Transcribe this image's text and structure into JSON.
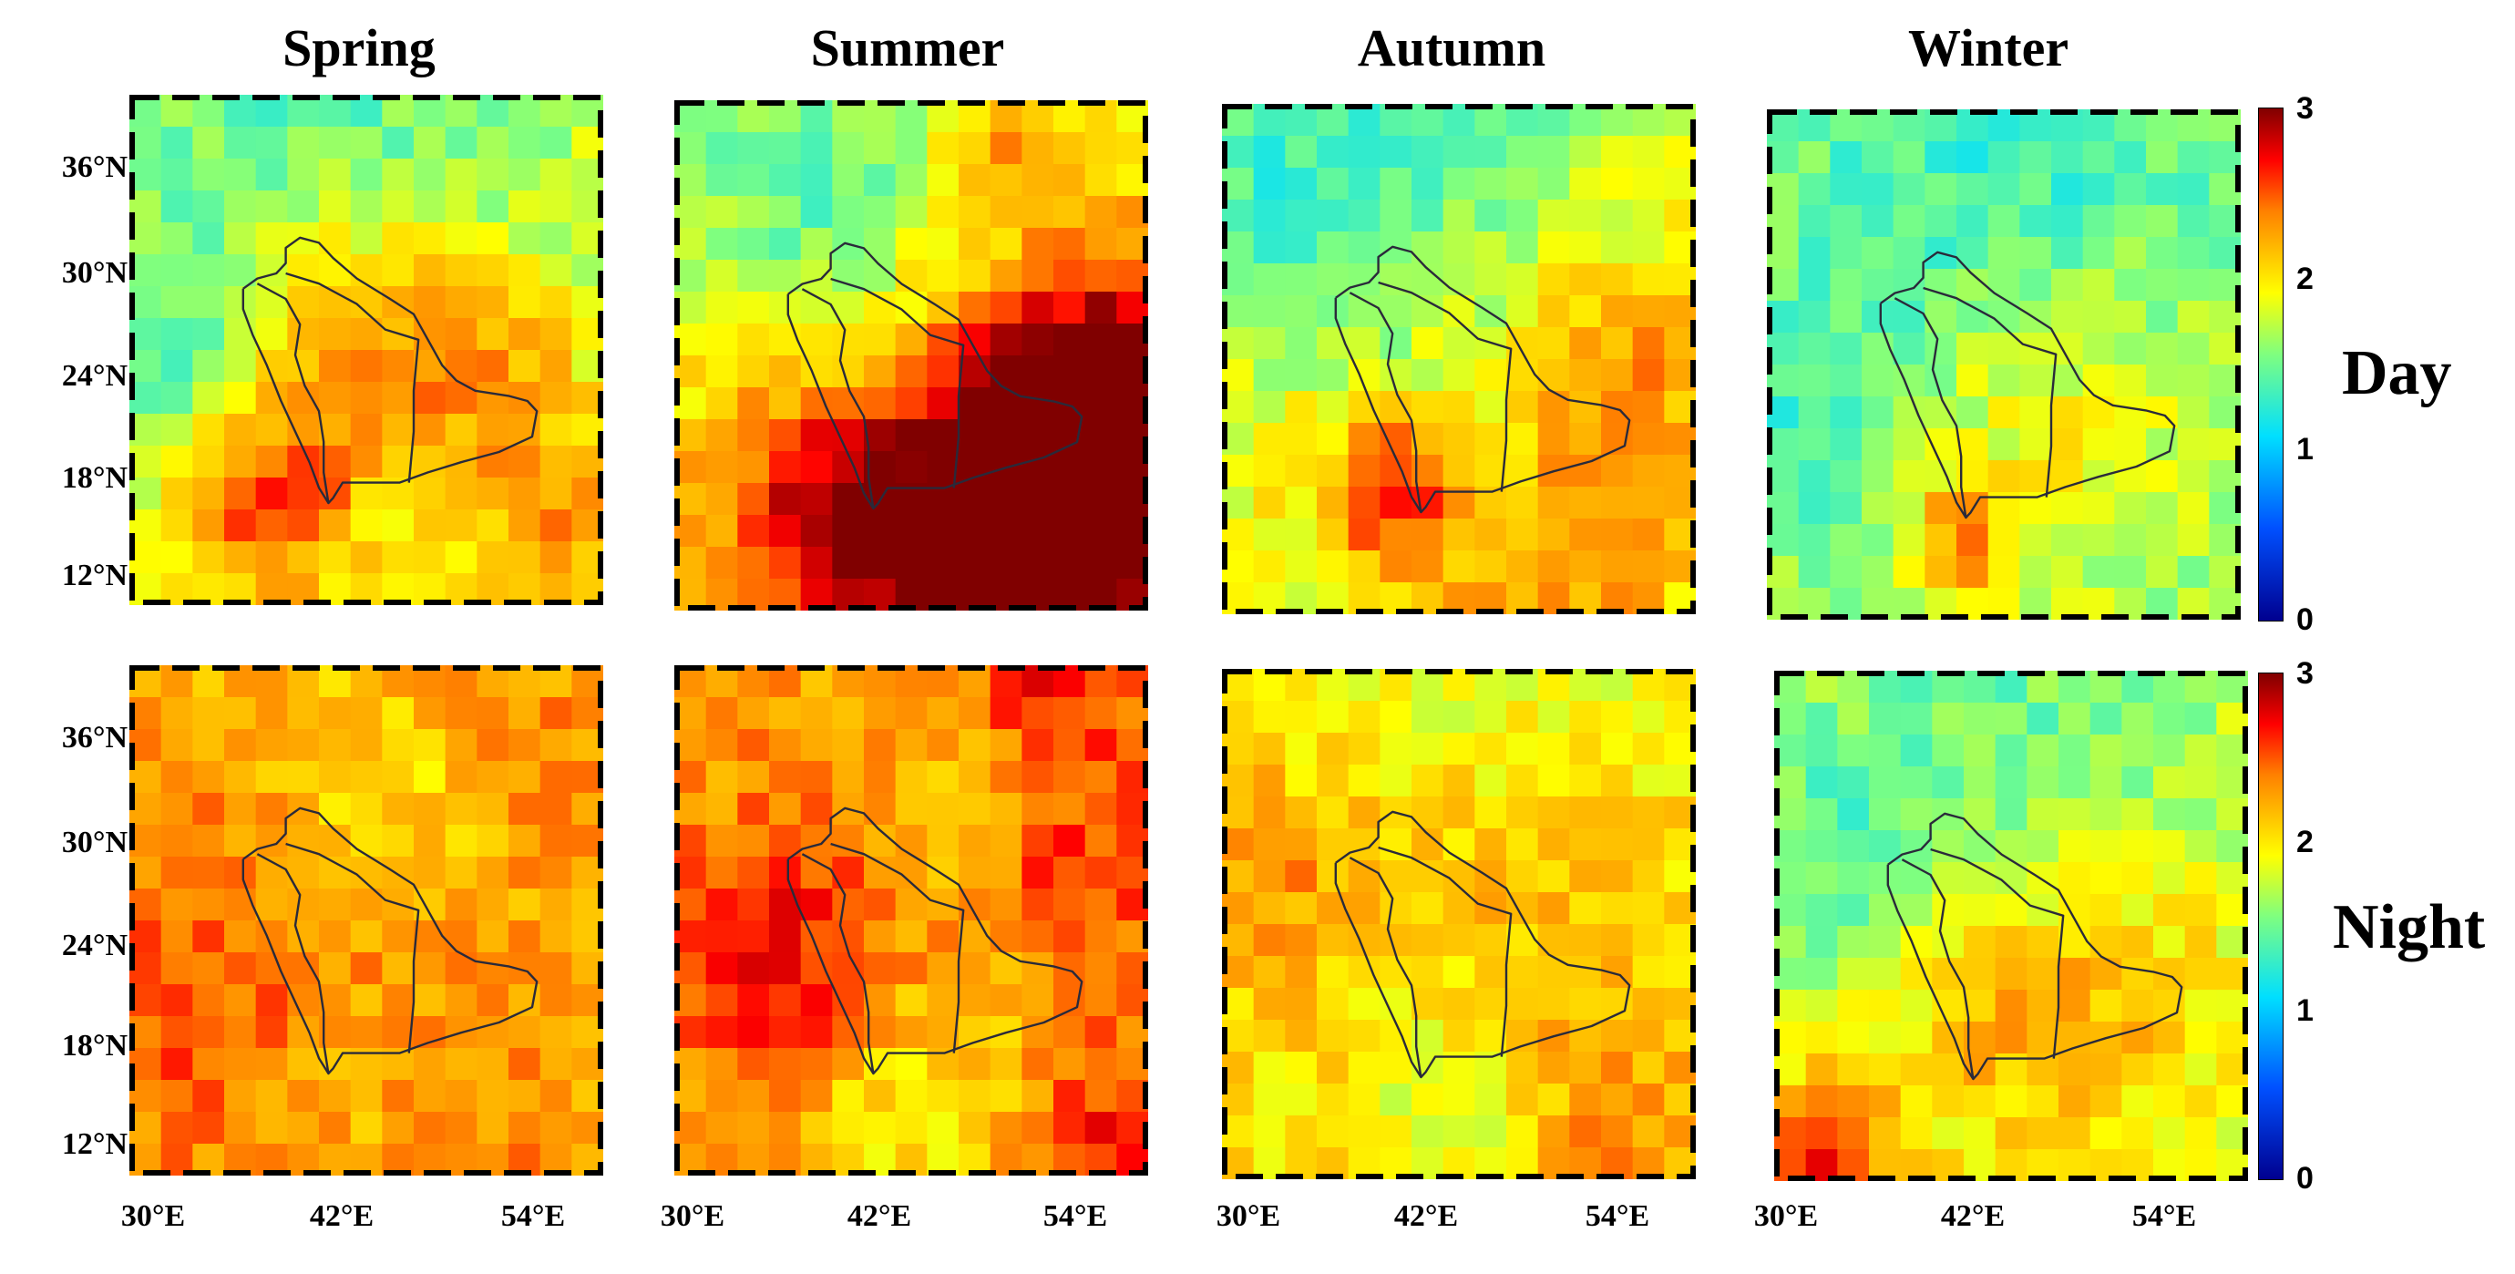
{
  "seasons": [
    "Spring",
    "Summer",
    "Autumn",
    "Winter"
  ],
  "rows": [
    "Day",
    "Night"
  ],
  "lat_ticks": [
    "36°N",
    "30°N",
    "24°N",
    "18°N",
    "12°N"
  ],
  "lon_ticks": [
    "30°E",
    "42°E",
    "54°E"
  ],
  "colorbar": {
    "min": 0,
    "max": 3,
    "ticks": [
      "3",
      "2",
      "1",
      "0"
    ],
    "colormap": "jet"
  },
  "grid": {
    "cols": 15,
    "rows": 16
  },
  "panels": [
    {
      "row": "Day",
      "season": "Spring",
      "base": 1.85,
      "hotspots": [
        [
          0.45,
          0.45,
          0.28,
          0.55
        ],
        [
          0.3,
          0.8,
          0.18,
          0.75
        ],
        [
          0.75,
          0.55,
          0.2,
          0.45
        ],
        [
          0.9,
          0.85,
          0.18,
          0.45
        ]
      ],
      "cool": [
        [
          0.4,
          0.05,
          0.5,
          0.45
        ],
        [
          0.1,
          0.5,
          0.25,
          0.35
        ]
      ]
    },
    {
      "row": "Day",
      "season": "Summer",
      "base": 1.95,
      "hotspots": [
        [
          0.9,
          0.6,
          0.3,
          1.25
        ],
        [
          0.75,
          0.9,
          0.3,
          1.1
        ],
        [
          0.35,
          0.8,
          0.3,
          0.85
        ],
        [
          0.7,
          0.1,
          0.1,
          0.45
        ]
      ],
      "cool": [
        [
          0.25,
          0.05,
          0.35,
          0.4
        ],
        [
          0.3,
          0.35,
          0.25,
          0.25
        ]
      ]
    },
    {
      "row": "Day",
      "season": "Autumn",
      "base": 1.9,
      "hotspots": [
        [
          0.35,
          0.75,
          0.15,
          0.75
        ],
        [
          0.85,
          0.5,
          0.25,
          0.45
        ],
        [
          0.7,
          0.95,
          0.3,
          0.4
        ]
      ],
      "cool": [
        [
          0.4,
          0.05,
          0.5,
          0.45
        ],
        [
          0.1,
          0.2,
          0.2,
          0.3
        ]
      ]
    },
    {
      "row": "Day",
      "season": "Winter",
      "base": 1.65,
      "hotspots": [
        [
          0.4,
          0.85,
          0.12,
          0.65
        ],
        [
          0.6,
          0.6,
          0.3,
          0.35
        ]
      ],
      "cool": [
        [
          0.5,
          0.05,
          0.5,
          0.35
        ],
        [
          0.05,
          0.6,
          0.25,
          0.3
        ]
      ]
    },
    {
      "row": "Night",
      "season": "Spring",
      "base": 2.25,
      "hotspots": [
        [
          0.1,
          0.6,
          0.3,
          0.25
        ],
        [
          0.8,
          0.2,
          0.25,
          0.2
        ],
        [
          0.5,
          0.95,
          0.4,
          0.2
        ]
      ],
      "cool": [
        [
          0.6,
          0.25,
          0.25,
          0.3
        ],
        [
          0.45,
          0.85,
          0.2,
          0.25
        ]
      ]
    },
    {
      "row": "Night",
      "season": "Summer",
      "base": 2.3,
      "hotspots": [
        [
          0.25,
          0.6,
          0.25,
          0.45
        ],
        [
          0.8,
          0.05,
          0.2,
          0.45
        ],
        [
          0.85,
          0.4,
          0.2,
          0.4
        ],
        [
          0.9,
          0.95,
          0.2,
          0.35
        ]
      ],
      "cool": [
        [
          0.5,
          0.85,
          0.25,
          0.4
        ],
        [
          0.7,
          0.25,
          0.25,
          0.25
        ]
      ]
    },
    {
      "row": "Night",
      "season": "Autumn",
      "base": 2.05,
      "hotspots": [
        [
          0.1,
          0.4,
          0.2,
          0.3
        ],
        [
          0.6,
          0.35,
          0.3,
          0.25
        ],
        [
          0.8,
          0.9,
          0.25,
          0.3
        ]
      ],
      "cool": [
        [
          0.55,
          0.05,
          0.4,
          0.3
        ],
        [
          0.5,
          0.85,
          0.2,
          0.3
        ]
      ]
    },
    {
      "row": "Night",
      "season": "Winter",
      "base": 1.85,
      "hotspots": [
        [
          0.1,
          0.95,
          0.15,
          0.8
        ],
        [
          0.5,
          0.7,
          0.25,
          0.35
        ],
        [
          0.75,
          0.6,
          0.25,
          0.25
        ]
      ],
      "cool": [
        [
          0.5,
          0.05,
          0.5,
          0.35
        ],
        [
          0.1,
          0.35,
          0.25,
          0.3
        ]
      ]
    }
  ]
}
